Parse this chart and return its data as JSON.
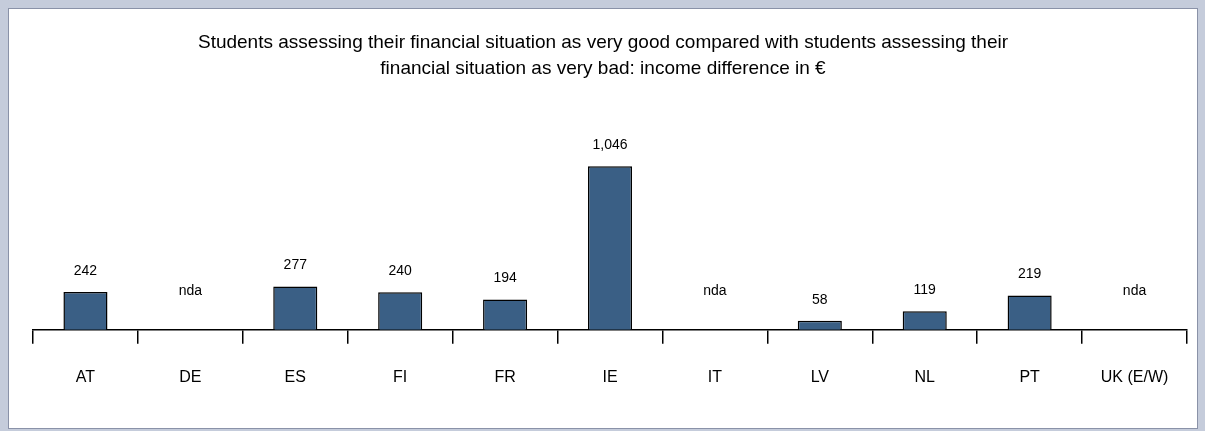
{
  "chart_data": {
    "type": "bar",
    "title": "Students assessing their financial situation as very good compared with students assessing their financial situation as very bad: income difference in €",
    "categories": [
      "AT",
      "DE",
      "ES",
      "FI",
      "FR",
      "IE",
      "IT",
      "LV",
      "NL",
      "PT",
      "UK (E/W)"
    ],
    "values": [
      242,
      null,
      277,
      240,
      194,
      1046,
      null,
      58,
      119,
      219,
      null
    ],
    "value_labels": [
      "242",
      "nda",
      "277",
      "240",
      "194",
      "1,046",
      "nda",
      "58",
      "119",
      "219",
      "nda"
    ],
    "color": "#3a5f85",
    "grid": false,
    "legend": false
  }
}
